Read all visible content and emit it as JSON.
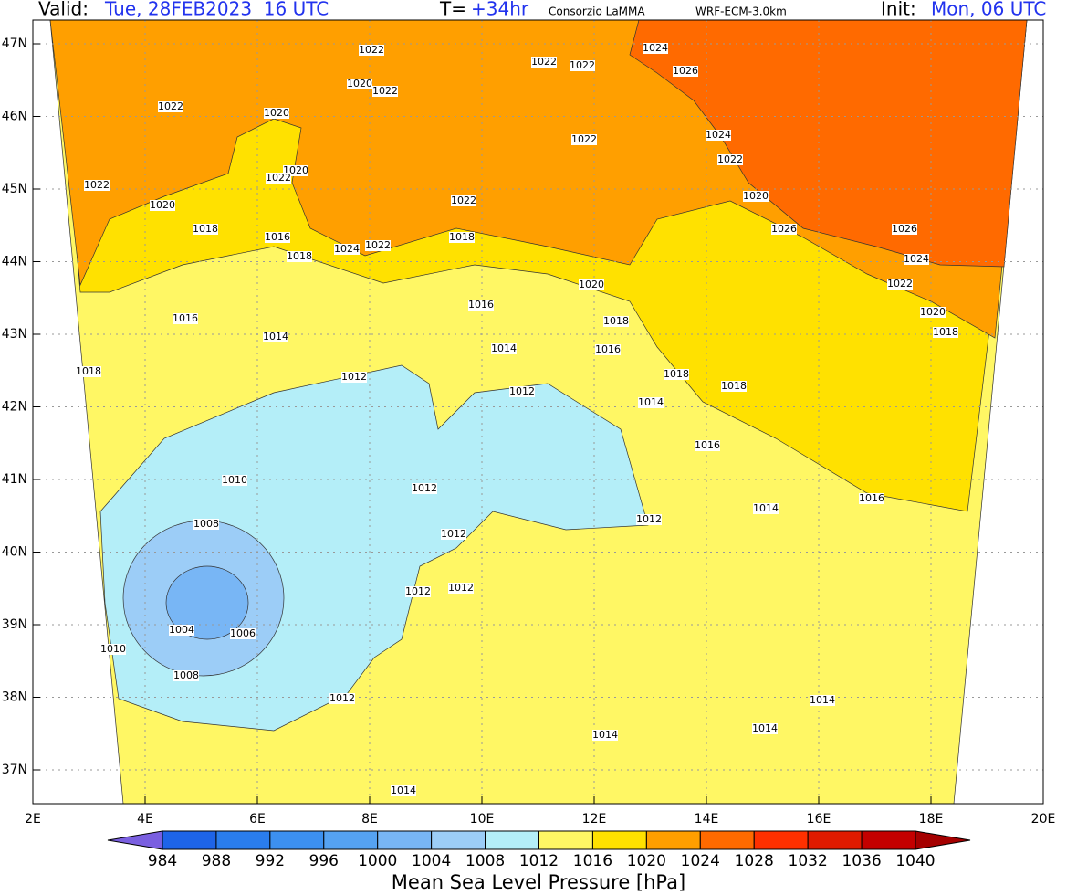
{
  "header": {
    "valid_label": "Valid:",
    "valid_time": "Tue, 28FEB2023  16 UTC",
    "lead_label": "T=",
    "lead_time": "+34hr",
    "source": "Consorzio LaMMA",
    "model": "WRF-ECM-3.0km",
    "init_label": "Init:",
    "init_time": "Mon, 06 UTC"
  },
  "map": {
    "lon_labels": [
      "2E",
      "4E",
      "6E",
      "8E",
      "10E",
      "12E",
      "14E",
      "16E",
      "18E",
      "20E"
    ],
    "lat_labels": [
      "47N",
      "46N",
      "45N",
      "44N",
      "43N",
      "42N",
      "41N",
      "40N",
      "39N",
      "38N",
      "37N"
    ],
    "contour_labels": [
      "1022",
      "1022",
      "1022",
      "1024",
      "1026",
      "1020",
      "1022",
      "1022",
      "1020",
      "1022",
      "1024",
      "1022",
      "1020",
      "1022",
      "1022",
      "1020",
      "1022",
      "1020",
      "1018",
      "1026",
      "1026",
      "1016",
      "1018",
      "1024",
      "1022",
      "1018",
      "1024",
      "1022",
      "1020",
      "1016",
      "1020",
      "1016",
      "1018",
      "1018",
      "1014",
      "1014",
      "1016",
      "1018",
      "1018",
      "1012",
      "1018",
      "1012",
      "1014",
      "1016",
      "1010",
      "1012",
      "1016",
      "1014",
      "1008",
      "1012",
      "1012",
      "1012",
      "1012",
      "1004",
      "1006",
      "1010",
      "1008",
      "1012",
      "1014",
      "1014",
      "1014",
      "1014"
    ]
  },
  "colorbar": {
    "levels": [
      984,
      988,
      992,
      996,
      1000,
      1004,
      1008,
      1012,
      1016,
      1020,
      1024,
      1028,
      1032,
      1036,
      1040
    ],
    "colors": [
      "#7a5fe0",
      "#1e64e8",
      "#2a7ded",
      "#3c90f0",
      "#55a2f2",
      "#78b6f5",
      "#9ccdf7",
      "#b4eef8",
      "#fff764",
      "#ffe100",
      "#ff9f00",
      "#ff6a00",
      "#ff3000",
      "#e01a00",
      "#c40000",
      "#a50000"
    ],
    "label": "Mean Sea Level Pressure [hPa]"
  }
}
